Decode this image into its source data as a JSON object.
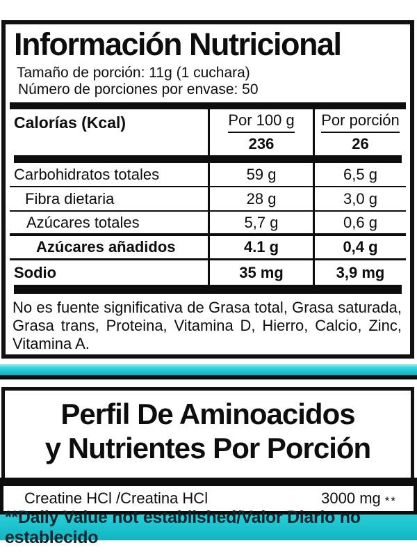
{
  "panel1": {
    "title": "Información Nutricional",
    "serving_size": "Tamaño de porción: 11g (1 cuchara)",
    "servings_per_container": "Número de porciones por envase: 50",
    "table": {
      "header_label": "Calorías (Kcal)",
      "col_per_100g": "Por 100 g",
      "col_per_serving": "Por porción",
      "calories_per_100g": "236",
      "calories_per_serving": "26",
      "rows": [
        {
          "label": "Carbohidratos totales",
          "per_100g": "59 g",
          "per_serving": "6,5 g"
        },
        {
          "label": "Fibra dietaria",
          "per_100g": "28 g",
          "per_serving": "3,0 g"
        },
        {
          "label": "Azúcares totales",
          "per_100g": "5,7 g",
          "per_serving": "0,6 g"
        },
        {
          "label": "Azúcares añadidos",
          "per_100g": "4.1 g",
          "per_serving": "0,4 g"
        },
        {
          "label": "Sodio",
          "per_100g": "35 mg",
          "per_serving": "3,9 mg"
        }
      ]
    },
    "disclaimer": "No es fuente significativa de Grasa total, Grasa saturada, Grasa trans, Proteina, Vitamina D, Hierro, Calcio, Zinc, Vitamina A."
  },
  "panel2": {
    "title_line1": "Perfil De Aminoacidos",
    "title_line2": "y Nutrientes Por Porción",
    "nutrient_name": "Creatine HCl /Creatina HCl",
    "nutrient_amount": "3000 mg",
    "footnote_marker": "**"
  },
  "footer": {
    "note": "**Daily Value not established/Valor Diario no establecido"
  },
  "colors": {
    "accent_cyan": "#18c5d0",
    "accent_cyan_light": "#a6f0f1",
    "accent_cyan_dark": "#0db1bf",
    "bar_black": "#0d0d0d",
    "footer_text": "#0e2530"
  }
}
